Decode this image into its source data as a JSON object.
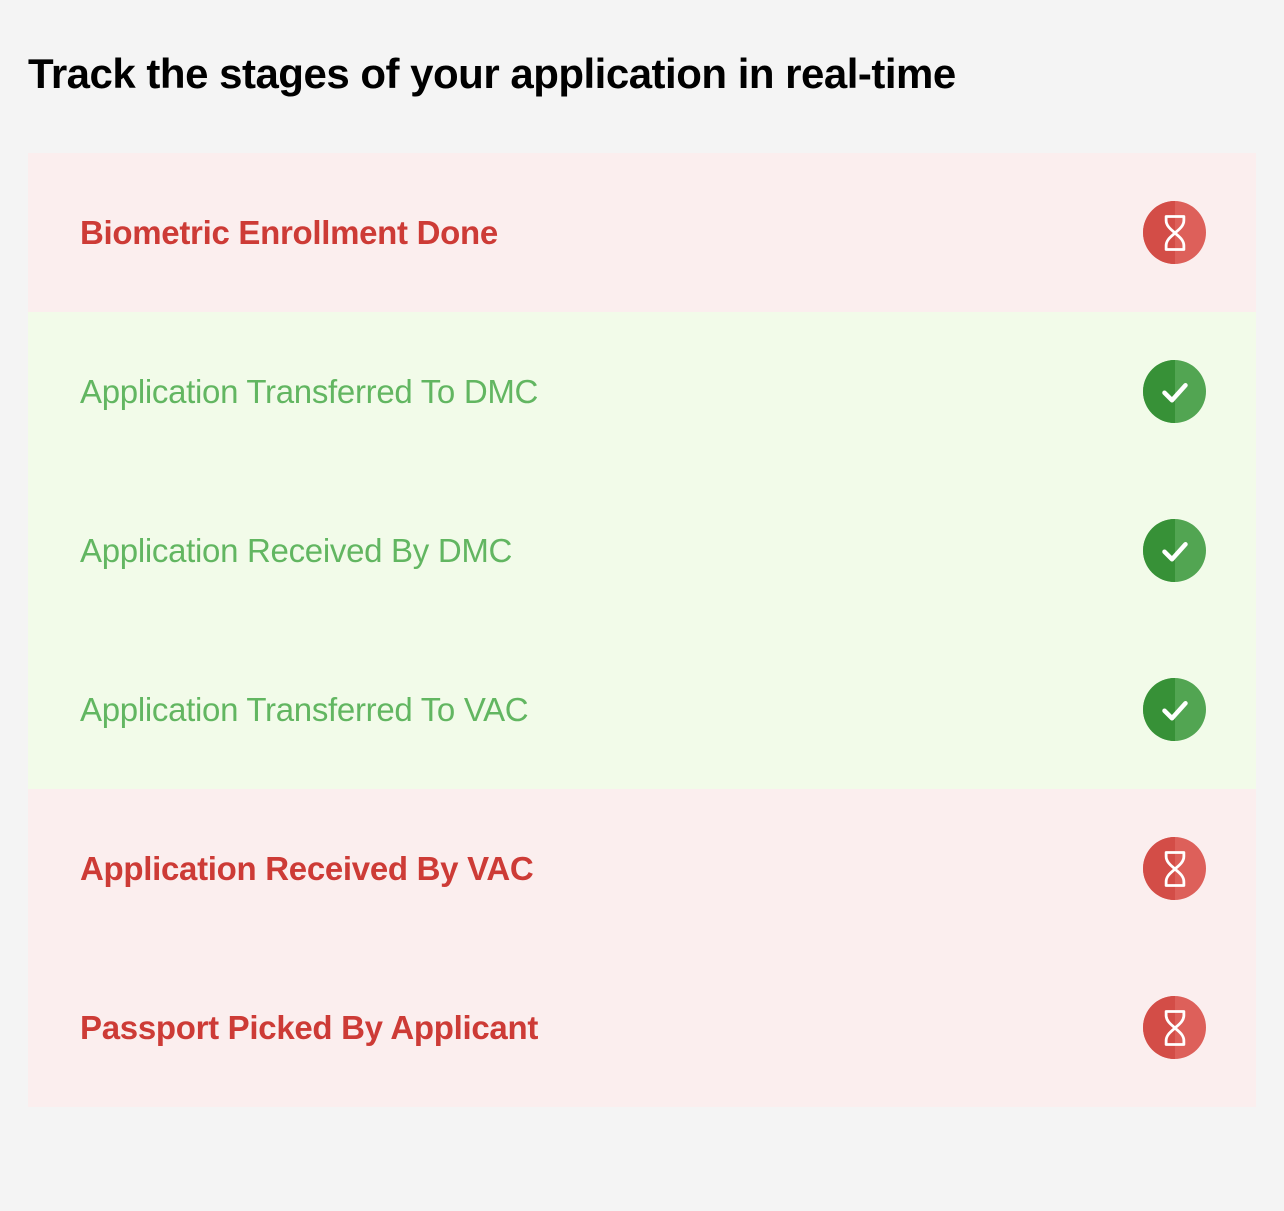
{
  "header": {
    "title": "Track the stages of your application in real-time"
  },
  "colors": {
    "page_background": "#f4f4f4",
    "pending_bg": "#fbeeee",
    "done_bg": "#f2fbe9",
    "pending_text": "#cd3b36",
    "done_text": "#62b661",
    "pending_icon_left": "#d34d47",
    "pending_icon_right": "#dd605a",
    "done_icon_left": "#379137",
    "done_icon_right": "#52a552",
    "icon_stroke": "#ffffff"
  },
  "typography": {
    "title_fontsize": 42,
    "title_weight": 700,
    "stage_fontsize": 33,
    "pending_weight": 700,
    "done_weight": 400
  },
  "stages": [
    {
      "label": "Biometric Enrollment Done",
      "status": "pending"
    },
    {
      "label": "Application Transferred To DMC",
      "status": "done"
    },
    {
      "label": "Application Received By DMC",
      "status": "done"
    },
    {
      "label": "Application Transferred To VAC",
      "status": "done"
    },
    {
      "label": "Application Received By VAC",
      "status": "pending"
    },
    {
      "label": "Passport Picked By Applicant",
      "status": "pending"
    }
  ]
}
